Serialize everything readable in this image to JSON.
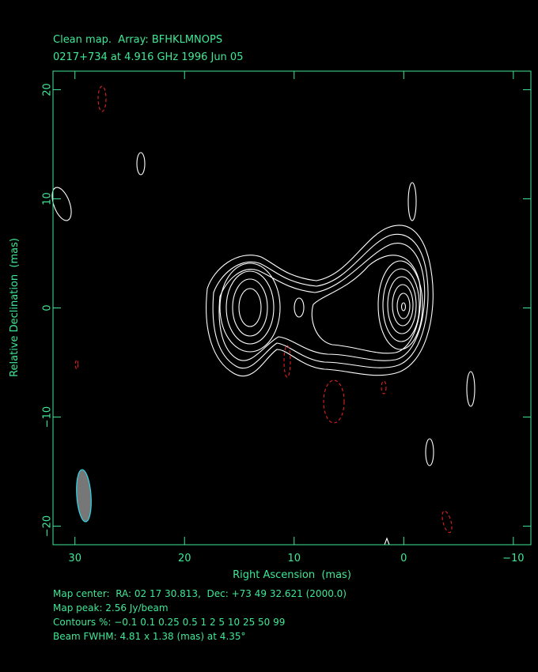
{
  "chart_data": {
    "type": "contour",
    "title": "Clean map.  Array: BFHKLMNOPS",
    "subtitle": "0217+734 at 4.916 GHz 1996 Jun 05",
    "x_label": "Right Ascension  (mas)",
    "y_label": "Relative Declination  (mas)",
    "xlim": [
      32,
      -11.6
    ],
    "ylim": [
      -21.7,
      21.7
    ],
    "xticks": [
      30,
      20,
      10,
      0,
      {
        "value": -10,
        "label": "−10"
      }
    ],
    "yticks": [
      {
        "value": -20,
        "label": "−20"
      },
      {
        "value": -10,
        "label": "−10"
      },
      0,
      10,
      20
    ],
    "color": "#3fe896",
    "annotations": [
      "Map center:  RA: 02 17 30.813,  Dec: +73 49 32.621 (2000.0)",
      "Map peak: 2.56 Jy/beam",
      "Contours %: −0.1 0.1 0.25 0.5 1 2 5 10 25 50 99",
      "Beam FWHM: 4.81 x 1.38 (mas) at 4.35°"
    ]
  }
}
